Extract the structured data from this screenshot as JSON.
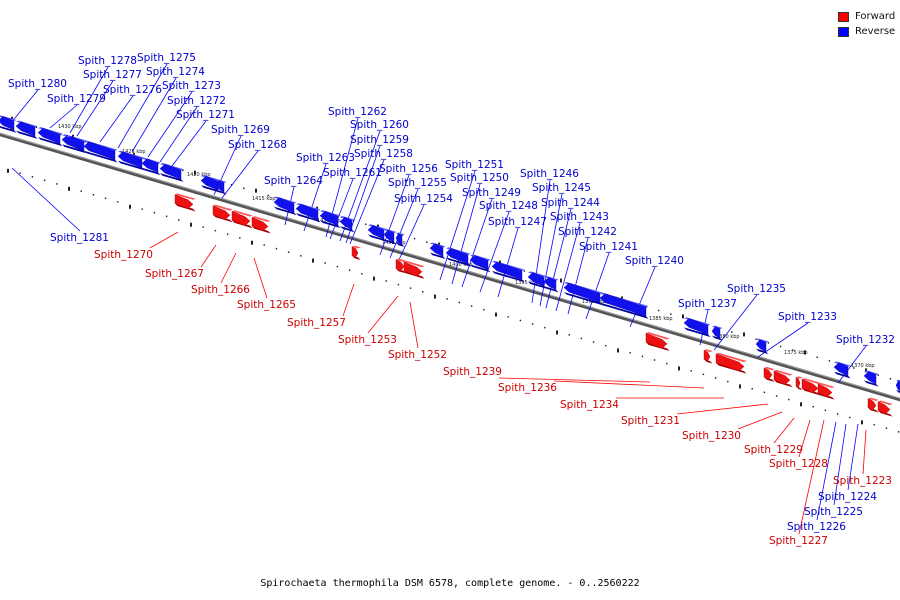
{
  "caption": "Spirochaeta thermophila DSM 6578, complete genome. - 0..2560222",
  "legend": {
    "forward": {
      "label": "Forward",
      "color": "#ff0000"
    },
    "reverse": {
      "label": "Reverse",
      "color": "#0000ff"
    }
  },
  "axis_labels": [
    "1430 kbp",
    "1425 kbp",
    "1420 kbp",
    "1415 kbp",
    "1410 kbp",
    "1405 kbp",
    "1400 kbp",
    "1395 kbp",
    "1390 kbp",
    "1385 kbp",
    "1380 kbp",
    "1375 kbp",
    "1370 kbp"
  ],
  "genes": [
    {
      "name": "Spith_1280",
      "strand": "reverse"
    },
    {
      "name": "Spith_1279",
      "strand": "reverse"
    },
    {
      "name": "Spith_1278",
      "strand": "reverse"
    },
    {
      "name": "Spith_1277",
      "strand": "reverse"
    },
    {
      "name": "Spith_1276",
      "strand": "reverse"
    },
    {
      "name": "Spith_1275",
      "strand": "reverse"
    },
    {
      "name": "Spith_1274",
      "strand": "reverse"
    },
    {
      "name": "Spith_1273",
      "strand": "reverse"
    },
    {
      "name": "Spith_1272",
      "strand": "reverse"
    },
    {
      "name": "Spith_1271",
      "strand": "reverse"
    },
    {
      "name": "Spith_1269",
      "strand": "reverse"
    },
    {
      "name": "Spith_1268",
      "strand": "reverse"
    },
    {
      "name": "Spith_1281",
      "strand": "reverse"
    },
    {
      "name": "Spith_1270",
      "strand": "forward"
    },
    {
      "name": "Spith_1267",
      "strand": "forward"
    },
    {
      "name": "Spith_1266",
      "strand": "forward"
    },
    {
      "name": "Spith_1265",
      "strand": "forward"
    },
    {
      "name": "Spith_1264",
      "strand": "reverse"
    },
    {
      "name": "Spith_1263",
      "strand": "reverse"
    },
    {
      "name": "Spith_1262",
      "strand": "reverse"
    },
    {
      "name": "Spith_1261",
      "strand": "reverse"
    },
    {
      "name": "Spith_1260",
      "strand": "reverse"
    },
    {
      "name": "Spith_1259",
      "strand": "reverse"
    },
    {
      "name": "Spith_1258",
      "strand": "reverse"
    },
    {
      "name": "Spith_1256",
      "strand": "reverse"
    },
    {
      "name": "Spith_1255",
      "strand": "reverse"
    },
    {
      "name": "Spith_1254",
      "strand": "reverse"
    },
    {
      "name": "Spith_1257",
      "strand": "forward"
    },
    {
      "name": "Spith_1253",
      "strand": "forward"
    },
    {
      "name": "Spith_1252",
      "strand": "forward"
    },
    {
      "name": "Spith_1251",
      "strand": "reverse"
    },
    {
      "name": "Spith_1250",
      "strand": "reverse"
    },
    {
      "name": "Spith_1249",
      "strand": "reverse"
    },
    {
      "name": "Spith_1248",
      "strand": "reverse"
    },
    {
      "name": "Spith_1247",
      "strand": "reverse"
    },
    {
      "name": "Spith_1246",
      "strand": "reverse"
    },
    {
      "name": "Spith_1245",
      "strand": "reverse"
    },
    {
      "name": "Spith_1244",
      "strand": "reverse"
    },
    {
      "name": "Spith_1243",
      "strand": "reverse"
    },
    {
      "name": "Spith_1242",
      "strand": "reverse"
    },
    {
      "name": "Spith_1241",
      "strand": "reverse"
    },
    {
      "name": "Spith_1240",
      "strand": "reverse"
    },
    {
      "name": "Spith_1239",
      "strand": "forward"
    },
    {
      "name": "Spith_1236",
      "strand": "forward"
    },
    {
      "name": "Spith_1234",
      "strand": "forward"
    },
    {
      "name": "Spith_1231",
      "strand": "forward"
    },
    {
      "name": "Spith_1230",
      "strand": "forward"
    },
    {
      "name": "Spith_1237",
      "strand": "reverse"
    },
    {
      "name": "Spith_1235",
      "strand": "reverse"
    },
    {
      "name": "Spith_1233",
      "strand": "reverse"
    },
    {
      "name": "Spith_1232",
      "strand": "reverse"
    },
    {
      "name": "Spith_1229",
      "strand": "forward"
    },
    {
      "name": "Spith_1228",
      "strand": "forward"
    },
    {
      "name": "Spith_1223",
      "strand": "forward"
    },
    {
      "name": "Spith_1224",
      "strand": "reverse"
    },
    {
      "name": "Spith_1225",
      "strand": "reverse"
    },
    {
      "name": "Spith_1226",
      "strand": "reverse"
    },
    {
      "name": "Spith_1227",
      "strand": "forward"
    }
  ]
}
